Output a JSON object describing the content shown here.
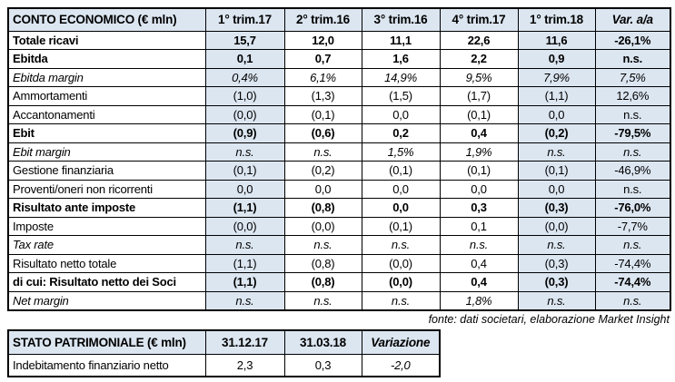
{
  "source_note": "fonte: dati societari, elaborazione Market Insight",
  "colors": {
    "header_bg": "#DCE6F1",
    "shaded_cell_bg": "#DCE6F1",
    "border": "#000000",
    "text": "#000000"
  },
  "chart_data": [
    {
      "type": "table",
      "name": "income-statement",
      "title": "CONTO ECONOMICO (€ mln)",
      "columns": [
        "CONTO ECONOMICO (€ mln)",
        "1° trim.17",
        "2° trim.16",
        "3° trim.16",
        "4° trim.17",
        "1° trim.18",
        "Var. a/a"
      ],
      "shaded_value_columns": [
        0,
        4,
        5
      ],
      "italic_header_columns": [
        6
      ],
      "rows": [
        {
          "label": "Totale ricavi",
          "values": [
            "15,7",
            "12,0",
            "11,1",
            "22,6",
            "11,6",
            "-26,1%"
          ],
          "style": "bold"
        },
        {
          "label": "Ebitda",
          "values": [
            "0,1",
            "0,7",
            "1,6",
            "2,2",
            "0,9",
            "n.s."
          ],
          "style": "bold"
        },
        {
          "label": "Ebitda margin",
          "values": [
            "0,4%",
            "6,1%",
            "14,9%",
            "9,5%",
            "7,9%",
            "7,5%"
          ],
          "style": "italic"
        },
        {
          "label": "Ammortamenti",
          "values": [
            "(1,0)",
            "(1,3)",
            "(1,5)",
            "(1,7)",
            "(1,1)",
            "12,6%"
          ],
          "style": "regular"
        },
        {
          "label": "Accantonamenti",
          "values": [
            "(0,0)",
            "(0,1)",
            "0,0",
            "(0,1)",
            "0,0",
            "n.s."
          ],
          "style": "regular"
        },
        {
          "label": "Ebit",
          "values": [
            "(0,9)",
            "(0,6)",
            "0,2",
            "0,4",
            "(0,2)",
            "-79,5%"
          ],
          "style": "bold"
        },
        {
          "label": "Ebit margin",
          "values": [
            "n.s.",
            "n.s.",
            "1,5%",
            "1,9%",
            "n.s.",
            "n.s."
          ],
          "style": "italic"
        },
        {
          "label": "Gestione finanziaria",
          "values": [
            "(0,1)",
            "(0,2)",
            "(0,1)",
            "(0,1)",
            "(0,1)",
            "-46,9%"
          ],
          "style": "regular"
        },
        {
          "label": "Proventi/oneri non ricorrenti",
          "values": [
            "0,0",
            "0,0",
            "0,0",
            "0,0",
            "0,0",
            "n.s."
          ],
          "style": "regular"
        },
        {
          "label": "Risultato ante imposte",
          "values": [
            "(1,1)",
            "(0,8)",
            "0,0",
            "0,3",
            "(0,3)",
            "-76,0%"
          ],
          "style": "bold"
        },
        {
          "label": "Imposte",
          "values": [
            "(0,0)",
            "(0,0)",
            "(0,1)",
            "0,1",
            "(0,0)",
            "-7,7%"
          ],
          "style": "regular"
        },
        {
          "label": "Tax rate",
          "values": [
            "n.s.",
            "n.s.",
            "n.s.",
            "n.s.",
            "n.s.",
            "n.s."
          ],
          "style": "italic"
        },
        {
          "label": "Risultato netto totale",
          "values": [
            "(1,1)",
            "(0,8)",
            "(0,0)",
            "0,4",
            "(0,3)",
            "-74,4%"
          ],
          "style": "regular"
        },
        {
          "label": "di cui: Risultato netto dei Soci",
          "values": [
            "(1,1)",
            "(0,8)",
            "(0,0)",
            "0,4",
            "(0,3)",
            "-74,4%"
          ],
          "style": "bold"
        },
        {
          "label": "Net margin",
          "values": [
            "n.s.",
            "n.s.",
            "n.s.",
            "1,8%",
            "n.s.",
            "n.s."
          ],
          "style": "italic"
        }
      ]
    },
    {
      "type": "table",
      "name": "balance-sheet",
      "title": "STATO PATRIMONIALE (€ mln)",
      "columns": [
        "STATO PATRIMONIALE (€ mln)",
        "31.12.17",
        "31.03.18",
        "Variazione"
      ],
      "shaded_value_columns": [],
      "italic_header_columns": [
        3
      ],
      "rows": [
        {
          "label": "Indebitamento finanziario netto",
          "values": [
            "2,3",
            "0,3",
            "-2,0"
          ],
          "style": "regular",
          "italic_cells": [
            2
          ]
        }
      ]
    }
  ]
}
